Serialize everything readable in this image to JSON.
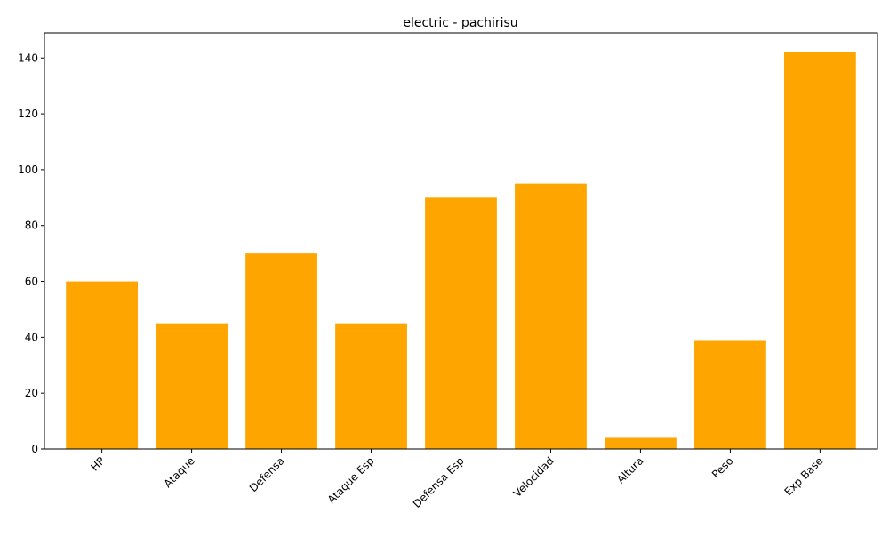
{
  "chart_data": {
    "type": "bar",
    "title": "electric - pachirisu",
    "xlabel": "",
    "ylabel": "",
    "categories": [
      "HP",
      "Ataque",
      "Defensa",
      "Ataque Esp",
      "Defensa Esp",
      "Velocidad",
      "Altura",
      "Peso",
      "Exp Base"
    ],
    "values": [
      60,
      45,
      70,
      45,
      90,
      95,
      4,
      39,
      142
    ],
    "ylim": [
      0,
      149
    ],
    "yticks": [
      0,
      20,
      40,
      60,
      80,
      100,
      120,
      140
    ],
    "bar_color": "#FFA500",
    "grid": false,
    "legend": "none",
    "xtick_rotation": 45
  }
}
